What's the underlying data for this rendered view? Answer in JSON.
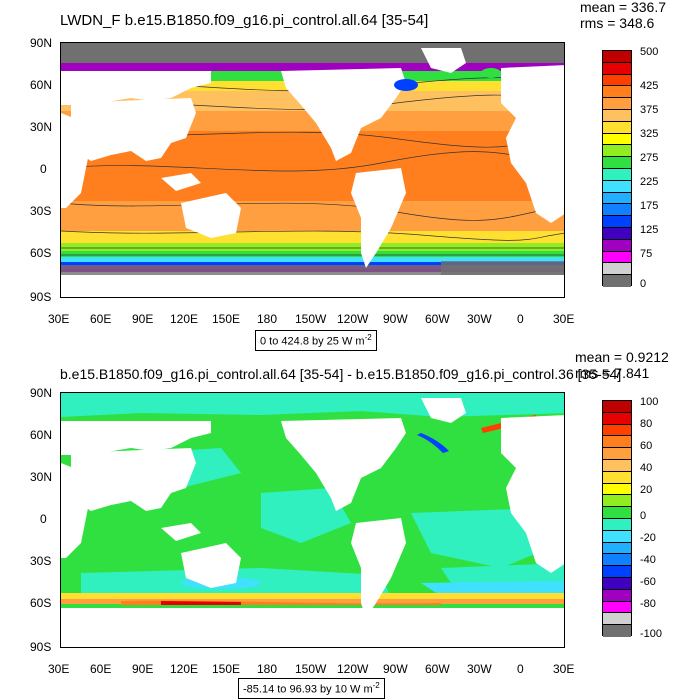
{
  "panel_top": {
    "title": "LWDN_F b.e15.B1850.f09_g16.pi_control.all.64 [35-54]",
    "mean": "mean = 336.7",
    "rms": "rms = 348.6",
    "range_text": "0 to 424.8 by 25  W m",
    "range_sup": "-2",
    "colorbar": {
      "colors": [
        "#bf0000",
        "#e60000",
        "#ff3f00",
        "#ff7f1f",
        "#ff9f3f",
        "#ffc060",
        "#ffe030",
        "#ffff00",
        "#90ee20",
        "#30e040",
        "#30f0c0",
        "#40e0ff",
        "#20b0ff",
        "#1080ff",
        "#0040ff",
        "#4000c0",
        "#a000c0",
        "#ff00ff",
        "#d0d0d0",
        "#707070"
      ],
      "labels": [
        "500",
        "425",
        "375",
        "325",
        "275",
        "225",
        "175",
        "125",
        "75",
        "0"
      ]
    }
  },
  "panel_bottom": {
    "title": "b.e15.B1850.f09_g16.pi_control.all.64 [35-54] - b.e15.B1850.f09_g16.pi_control.36 [35-54]",
    "mean": "mean = 0.9212",
    "rms": "rms = 7.841",
    "range_text": "-85.14 to 96.93 by 10  W m",
    "range_sup": "-2",
    "colorbar": {
      "colors": [
        "#bf0000",
        "#e60000",
        "#ff3f00",
        "#ff7f1f",
        "#ff9f3f",
        "#ffc060",
        "#ffe030",
        "#ffff00",
        "#90ee20",
        "#30e040",
        "#30f0c0",
        "#40e0ff",
        "#20b0ff",
        "#1080ff",
        "#0040ff",
        "#4000c0",
        "#a000c0",
        "#ff00ff",
        "#d0d0d0",
        "#707070"
      ],
      "labels": [
        "100",
        "80",
        "60",
        "40",
        "20",
        "0",
        "-20",
        "-40",
        "-60",
        "-80",
        "-100"
      ]
    }
  },
  "axes": {
    "lat_labels": [
      "90N",
      "60N",
      "30N",
      "0",
      "30S",
      "60S",
      "90S"
    ],
    "lon_labels": [
      "30E",
      "60E",
      "90E",
      "120E",
      "150E",
      "180",
      "150W",
      "120W",
      "90W",
      "60W",
      "30W",
      "0",
      "30E"
    ]
  }
}
